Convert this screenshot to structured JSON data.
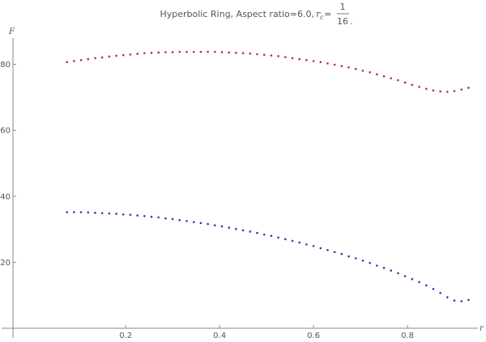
{
  "chart_data": {
    "type": "scatter",
    "title": {
      "prefix": "Hyperbolic Ring, Aspect ratio=6.0, ",
      "var_main": "r",
      "var_sub": "c",
      "equals": " = ",
      "frac_num": "1",
      "frac_den": "16",
      "suffix": "."
    },
    "xlabel": "r",
    "ylabel": "F",
    "xlim": [
      -0.04,
      0.95
    ],
    "ylim": [
      0,
      88
    ],
    "x_ticks": [
      0.2,
      0.4,
      0.6,
      0.8
    ],
    "x_tick_labels": [
      "0.2",
      "0.4",
      "0.6",
      "0.8"
    ],
    "y_ticks": [
      20,
      40,
      60,
      80
    ],
    "y_tick_labels": [
      "20",
      "40",
      "60",
      "80"
    ],
    "grid": false,
    "series": [
      {
        "color": "#b03040",
        "x": [
          0.075,
          0.09,
          0.105,
          0.12,
          0.135,
          0.15,
          0.165,
          0.18,
          0.195,
          0.21,
          0.225,
          0.24,
          0.255,
          0.27,
          0.285,
          0.3,
          0.315,
          0.33,
          0.345,
          0.36,
          0.375,
          0.39,
          0.405,
          0.42,
          0.435,
          0.45,
          0.465,
          0.48,
          0.495,
          0.51,
          0.525,
          0.54,
          0.555,
          0.57,
          0.585,
          0.6,
          0.615,
          0.63,
          0.645,
          0.66,
          0.675,
          0.69,
          0.705,
          0.72,
          0.735,
          0.75,
          0.765,
          0.78,
          0.795,
          0.81,
          0.825,
          0.84,
          0.855,
          0.87,
          0.885,
          0.9,
          0.915,
          0.93
        ],
        "y": [
          80.7,
          81.0,
          81.3,
          81.6,
          81.9,
          82.1,
          82.4,
          82.6,
          82.8,
          83.0,
          83.2,
          83.4,
          83.5,
          83.6,
          83.7,
          83.7,
          83.8,
          83.8,
          83.8,
          83.8,
          83.8,
          83.8,
          83.7,
          83.6,
          83.5,
          83.4,
          83.3,
          83.1,
          82.9,
          82.7,
          82.5,
          82.2,
          81.9,
          81.6,
          81.3,
          81.0,
          80.7,
          80.3,
          79.9,
          79.5,
          79.1,
          78.6,
          78.1,
          77.6,
          77.0,
          76.4,
          75.8,
          75.2,
          74.5,
          73.8,
          73.2,
          72.6,
          72.1,
          71.8,
          71.7,
          71.9,
          72.4,
          72.9
        ]
      },
      {
        "color": "#3a3aa0",
        "x": [
          0.075,
          0.09,
          0.105,
          0.12,
          0.135,
          0.15,
          0.165,
          0.18,
          0.195,
          0.21,
          0.225,
          0.24,
          0.255,
          0.27,
          0.285,
          0.3,
          0.315,
          0.33,
          0.345,
          0.36,
          0.375,
          0.39,
          0.405,
          0.42,
          0.435,
          0.45,
          0.465,
          0.48,
          0.495,
          0.51,
          0.525,
          0.54,
          0.555,
          0.57,
          0.585,
          0.6,
          0.615,
          0.63,
          0.645,
          0.66,
          0.675,
          0.69,
          0.705,
          0.72,
          0.735,
          0.75,
          0.765,
          0.78,
          0.795,
          0.81,
          0.825,
          0.84,
          0.855,
          0.87,
          0.885,
          0.9,
          0.915,
          0.93
        ],
        "y": [
          35.2,
          35.2,
          35.2,
          35.1,
          35.0,
          34.9,
          34.8,
          34.7,
          34.5,
          34.4,
          34.2,
          34.0,
          33.8,
          33.6,
          33.3,
          33.1,
          32.8,
          32.5,
          32.2,
          31.9,
          31.6,
          31.2,
          30.9,
          30.5,
          30.1,
          29.7,
          29.3,
          28.9,
          28.4,
          28.0,
          27.5,
          27.0,
          26.5,
          26.0,
          25.4,
          24.9,
          24.3,
          23.7,
          23.1,
          22.5,
          21.8,
          21.2,
          20.5,
          19.8,
          19.0,
          18.3,
          17.5,
          16.7,
          15.8,
          14.9,
          14.0,
          13.0,
          11.9,
          10.7,
          9.4,
          8.4,
          8.2,
          8.6
        ]
      }
    ]
  }
}
